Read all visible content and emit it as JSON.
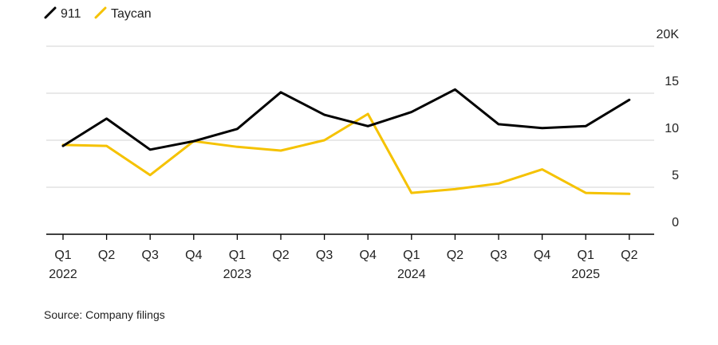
{
  "chart_data": {
    "type": "line",
    "categories": [
      "Q1",
      "Q2",
      "Q3",
      "Q4",
      "Q1",
      "Q2",
      "Q3",
      "Q4",
      "Q1",
      "Q2",
      "Q3",
      "Q4",
      "Q1",
      "Q2"
    ],
    "years": [
      {
        "label": "2022",
        "index": 0
      },
      {
        "label": "2023",
        "index": 4
      },
      {
        "label": "2024",
        "index": 8
      },
      {
        "label": "2025",
        "index": 12
      }
    ],
    "series": [
      {
        "name": "911",
        "color": "#000000",
        "values": [
          9.4,
          12.3,
          9.0,
          9.9,
          11.2,
          15.1,
          12.7,
          11.5,
          13.0,
          15.4,
          11.7,
          11.3,
          11.5,
          14.3
        ]
      },
      {
        "name": "Taycan",
        "color": "#F5C200",
        "values": [
          9.5,
          9.4,
          6.3,
          9.9,
          9.3,
          8.9,
          10.0,
          12.8,
          4.4,
          4.8,
          5.4,
          6.9,
          4.4,
          4.3
        ]
      }
    ],
    "ylim": [
      0,
      20
    ],
    "yticks": [
      "0",
      "5",
      "10",
      "15",
      "20K"
    ],
    "ytick_values": [
      0,
      5,
      10,
      15,
      20
    ],
    "legend_position": "top-left",
    "grid": true
  },
  "source": "Source: Company filings"
}
